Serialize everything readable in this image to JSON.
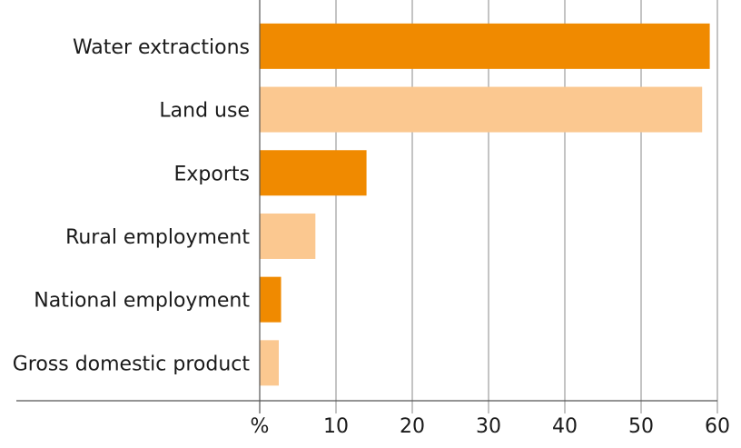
{
  "chart_data": {
    "type": "bar",
    "orientation": "horizontal",
    "categories": [
      "Water extractions",
      "Land use",
      "Exports",
      "Rural employment",
      "National employment",
      "Gross domestic product"
    ],
    "values": [
      59,
      58,
      14,
      7.3,
      2.8,
      2.5
    ],
    "colors": [
      "#f08a00",
      "#fbc890",
      "#f08a00",
      "#fbc890",
      "#f08a00",
      "#fbc890"
    ],
    "xlim": [
      0,
      60
    ],
    "xticks": [
      0,
      10,
      20,
      30,
      40,
      50,
      60
    ],
    "xtick_labels": [
      "%",
      "10",
      "20",
      "30",
      "40",
      "50",
      "60"
    ],
    "grid": "vertical",
    "title": "",
    "xlabel": "",
    "ylabel": ""
  }
}
